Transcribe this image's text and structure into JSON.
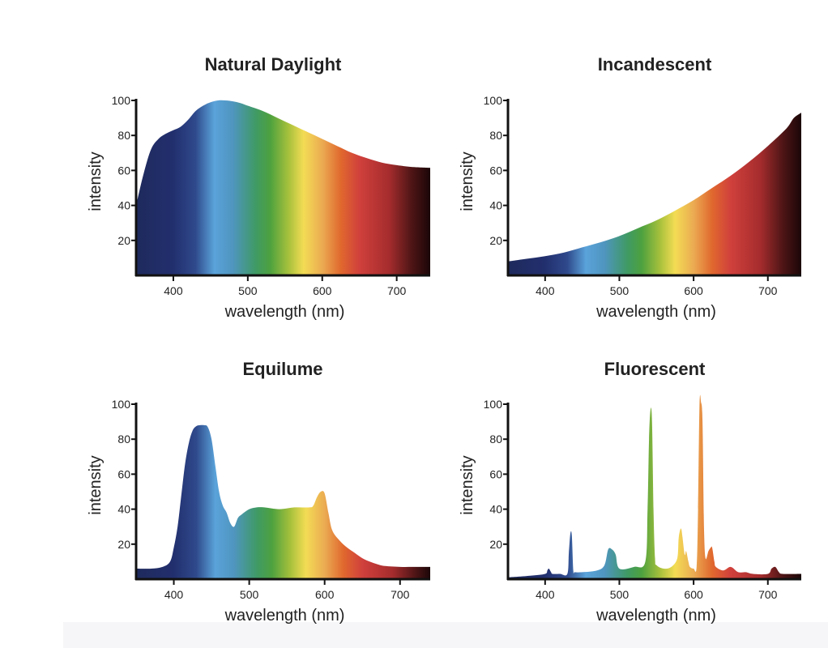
{
  "colors": {
    "axis": "#111111",
    "spectrum_stops": [
      {
        "nm": 350,
        "color": "#1e2a5c"
      },
      {
        "nm": 400,
        "color": "#222f6e"
      },
      {
        "nm": 430,
        "color": "#2f4a8c"
      },
      {
        "nm": 455,
        "color": "#5aa3da"
      },
      {
        "nm": 480,
        "color": "#4f95bf"
      },
      {
        "nm": 510,
        "color": "#3f9a66"
      },
      {
        "nm": 530,
        "color": "#4da13f"
      },
      {
        "nm": 555,
        "color": "#a8c13c"
      },
      {
        "nm": 575,
        "color": "#f3dc54"
      },
      {
        "nm": 600,
        "color": "#ebab52"
      },
      {
        "nm": 625,
        "color": "#e0682e"
      },
      {
        "nm": 650,
        "color": "#d0403c"
      },
      {
        "nm": 690,
        "color": "#a52c2d"
      },
      {
        "nm": 720,
        "color": "#4f1516"
      },
      {
        "nm": 745,
        "color": "#1b0608"
      }
    ]
  },
  "chart_data": [
    {
      "type": "area",
      "title": "Natural Daylight",
      "xlabel": "wavelength (nm)",
      "ylabel": "intensity",
      "xlim": [
        350,
        745
      ],
      "ylim": [
        0,
        100
      ],
      "xticks": [
        400,
        500,
        600,
        700
      ],
      "yticks": [
        20,
        40,
        60,
        80,
        100
      ],
      "grid": false,
      "x": [
        350,
        360,
        370,
        380,
        390,
        400,
        410,
        420,
        430,
        440,
        450,
        460,
        470,
        480,
        490,
        500,
        520,
        540,
        560,
        580,
        600,
        620,
        640,
        660,
        680,
        700,
        720,
        745
      ],
      "y": [
        40,
        58,
        72,
        78,
        81,
        83,
        85,
        89,
        94,
        97,
        99,
        100,
        100,
        99.5,
        98.5,
        97,
        94,
        90,
        86,
        82,
        78,
        74,
        70,
        67,
        64.5,
        63,
        62,
        61.5
      ]
    },
    {
      "type": "area",
      "title": "Incandescent",
      "xlabel": "wavelength (nm)",
      "ylabel": "intensity",
      "xlim": [
        350,
        745
      ],
      "ylim": [
        0,
        100
      ],
      "xticks": [
        400,
        500,
        600,
        700
      ],
      "yticks": [
        20,
        40,
        60,
        80,
        100
      ],
      "grid": false,
      "x": [
        350,
        375,
        400,
        425,
        450,
        475,
        500,
        525,
        550,
        575,
        600,
        625,
        650,
        675,
        700,
        725,
        735,
        745
      ],
      "y": [
        8,
        9.5,
        11,
        13,
        16,
        19,
        22.5,
        27,
        31.5,
        37,
        43,
        50,
        57,
        65,
        74,
        84,
        90,
        93
      ]
    },
    {
      "type": "area",
      "title": "Equilume",
      "xlabel": "wavelength (nm)",
      "ylabel": "intensity",
      "xlim": [
        350,
        740
      ],
      "ylim": [
        0,
        100
      ],
      "xticks": [
        400,
        500,
        600,
        700
      ],
      "yticks": [
        20,
        40,
        60,
        80,
        100
      ],
      "grid": false,
      "x": [
        350,
        370,
        385,
        395,
        400,
        405,
        410,
        415,
        420,
        425,
        430,
        435,
        440,
        445,
        450,
        455,
        460,
        465,
        470,
        475,
        480,
        485,
        490,
        500,
        510,
        520,
        540,
        560,
        580,
        585,
        590,
        595,
        600,
        605,
        610,
        620,
        630,
        640,
        650,
        660,
        670,
        680,
        700,
        720,
        740
      ],
      "y": [
        6,
        6,
        7,
        10,
        18,
        30,
        48,
        66,
        78,
        85,
        87.5,
        88,
        88,
        87,
        80,
        65,
        50,
        42,
        38,
        32,
        30,
        35,
        37,
        40,
        41,
        41,
        40,
        41,
        41,
        42,
        47,
        50,
        49,
        38,
        28,
        22,
        18,
        15,
        12,
        10,
        8.5,
        7.5,
        7,
        7,
        7
      ]
    },
    {
      "type": "area",
      "title": "Fluorescent",
      "xlabel": "wavelength (nm)",
      "ylabel": "intensity",
      "xlim": [
        350,
        745
      ],
      "ylim": [
        0,
        100
      ],
      "xticks": [
        400,
        500,
        600,
        700
      ],
      "yticks": [
        20,
        40,
        60,
        80,
        100
      ],
      "grid": false,
      "x": [
        350,
        380,
        400,
        403,
        405,
        408,
        410,
        420,
        430,
        432,
        434,
        436,
        438,
        440,
        450,
        470,
        480,
        485,
        490,
        495,
        500,
        520,
        535,
        538,
        540,
        542,
        544,
        546,
        548,
        550,
        560,
        570,
        578,
        580,
        583,
        585,
        588,
        590,
        593,
        595,
        600,
        604,
        606,
        608,
        610,
        612,
        614,
        616,
        620,
        623,
        625,
        628,
        630,
        640,
        650,
        660,
        670,
        680,
        700,
        705,
        710,
        715,
        720,
        745
      ],
      "y": [
        1,
        2,
        3,
        5,
        6,
        4,
        3,
        3,
        3,
        15,
        26,
        25,
        5,
        4,
        4,
        5,
        8,
        17,
        17,
        14,
        6,
        7,
        10,
        40,
        80,
        97,
        90,
        40,
        12,
        8,
        6,
        7,
        12,
        24,
        29,
        24,
        14,
        16,
        10,
        7,
        6,
        7,
        40,
        100,
        101,
        90,
        30,
        12,
        16,
        18,
        18,
        10,
        7,
        5,
        7,
        4,
        4,
        3,
        3,
        6,
        7,
        4,
        3,
        3
      ]
    }
  ]
}
